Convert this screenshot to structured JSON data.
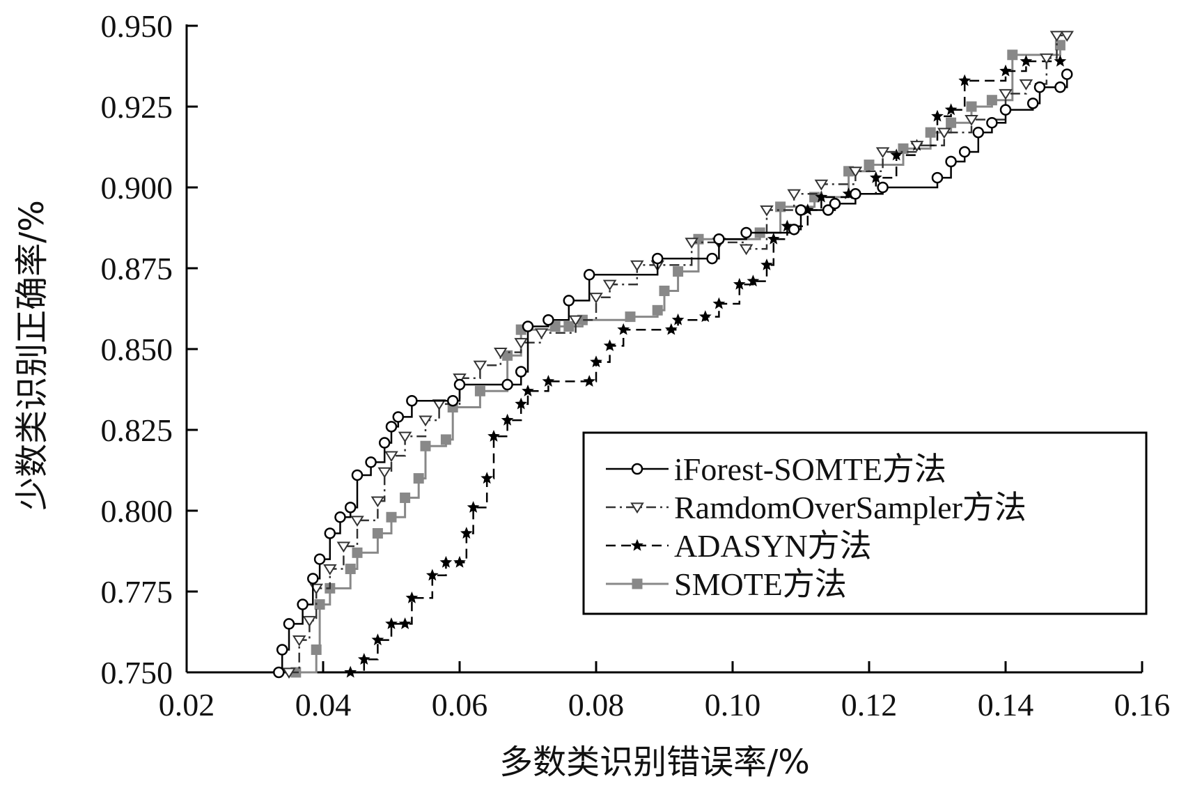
{
  "chart_data": {
    "type": "line",
    "title": "",
    "xlabel": "多数类识别错误率/%",
    "ylabel": "少数类识别正确率/%",
    "xlim": [
      0.02,
      0.16
    ],
    "ylim": [
      0.75,
      0.95
    ],
    "x_ticks": [
      "0.02",
      "0.04",
      "0.06",
      "0.08",
      "0.10",
      "0.12",
      "0.14",
      "0.16"
    ],
    "y_ticks": [
      "0.750",
      "0.775",
      "0.800",
      "0.825",
      "0.850",
      "0.875",
      "0.900",
      "0.925",
      "0.950"
    ],
    "grid": false,
    "legend_position": "right",
    "series": [
      {
        "name": "iForest-SOMTE方法",
        "color": "#000000",
        "line_style": "solid",
        "marker": "circle",
        "points": [
          [
            0.0335,
            0.75
          ],
          [
            0.034,
            0.757
          ],
          [
            0.035,
            0.765
          ],
          [
            0.037,
            0.771
          ],
          [
            0.0385,
            0.779
          ],
          [
            0.0395,
            0.785
          ],
          [
            0.041,
            0.793
          ],
          [
            0.0425,
            0.798
          ],
          [
            0.044,
            0.801
          ],
          [
            0.045,
            0.811
          ],
          [
            0.047,
            0.815
          ],
          [
            0.049,
            0.821
          ],
          [
            0.05,
            0.826
          ],
          [
            0.051,
            0.829
          ],
          [
            0.053,
            0.834
          ],
          [
            0.059,
            0.834
          ],
          [
            0.06,
            0.839
          ],
          [
            0.067,
            0.839
          ],
          [
            0.069,
            0.843
          ],
          [
            0.07,
            0.857
          ],
          [
            0.073,
            0.859
          ],
          [
            0.076,
            0.865
          ],
          [
            0.079,
            0.873
          ],
          [
            0.089,
            0.878
          ],
          [
            0.097,
            0.878
          ],
          [
            0.098,
            0.884
          ],
          [
            0.102,
            0.886
          ],
          [
            0.109,
            0.887
          ],
          [
            0.11,
            0.893
          ],
          [
            0.114,
            0.893
          ],
          [
            0.115,
            0.895
          ],
          [
            0.118,
            0.898
          ],
          [
            0.122,
            0.9
          ],
          [
            0.13,
            0.903
          ],
          [
            0.132,
            0.908
          ],
          [
            0.134,
            0.911
          ],
          [
            0.136,
            0.917
          ],
          [
            0.138,
            0.92
          ],
          [
            0.14,
            0.924
          ],
          [
            0.144,
            0.926
          ],
          [
            0.145,
            0.931
          ],
          [
            0.148,
            0.931
          ],
          [
            0.149,
            0.935
          ]
        ]
      },
      {
        "name": "RamdomOverSampler方法",
        "color": "#333333",
        "line_style": "dash-dot",
        "marker": "triangle-down",
        "points": [
          [
            0.035,
            0.75
          ],
          [
            0.0365,
            0.76
          ],
          [
            0.038,
            0.766
          ],
          [
            0.039,
            0.776
          ],
          [
            0.041,
            0.782
          ],
          [
            0.043,
            0.789
          ],
          [
            0.045,
            0.797
          ],
          [
            0.048,
            0.803
          ],
          [
            0.049,
            0.812
          ],
          [
            0.05,
            0.817
          ],
          [
            0.052,
            0.823
          ],
          [
            0.055,
            0.828
          ],
          [
            0.057,
            0.833
          ],
          [
            0.06,
            0.841
          ],
          [
            0.063,
            0.845
          ],
          [
            0.066,
            0.849
          ],
          [
            0.069,
            0.852
          ],
          [
            0.072,
            0.855
          ],
          [
            0.077,
            0.859
          ],
          [
            0.08,
            0.866
          ],
          [
            0.082,
            0.87
          ],
          [
            0.086,
            0.876
          ],
          [
            0.089,
            0.876
          ],
          [
            0.094,
            0.883
          ],
          [
            0.098,
            0.883
          ],
          [
            0.102,
            0.881
          ],
          [
            0.105,
            0.893
          ],
          [
            0.109,
            0.898
          ],
          [
            0.113,
            0.901
          ],
          [
            0.118,
            0.905
          ],
          [
            0.122,
            0.911
          ],
          [
            0.127,
            0.913
          ],
          [
            0.131,
            0.917
          ],
          [
            0.135,
            0.921
          ],
          [
            0.14,
            0.929
          ],
          [
            0.143,
            0.932
          ],
          [
            0.146,
            0.94
          ],
          [
            0.1475,
            0.947
          ],
          [
            0.149,
            0.947
          ]
        ]
      },
      {
        "name": "ADASYN方法",
        "color": "#000000",
        "line_style": "dashed",
        "marker": "star",
        "points": [
          [
            0.044,
            0.75
          ],
          [
            0.046,
            0.754
          ],
          [
            0.048,
            0.76
          ],
          [
            0.05,
            0.765
          ],
          [
            0.052,
            0.765
          ],
          [
            0.053,
            0.773
          ],
          [
            0.056,
            0.78
          ],
          [
            0.058,
            0.784
          ],
          [
            0.06,
            0.784
          ],
          [
            0.061,
            0.793
          ],
          [
            0.062,
            0.801
          ],
          [
            0.064,
            0.81
          ],
          [
            0.065,
            0.823
          ],
          [
            0.067,
            0.828
          ],
          [
            0.069,
            0.833
          ],
          [
            0.07,
            0.837
          ],
          [
            0.073,
            0.84
          ],
          [
            0.079,
            0.84
          ],
          [
            0.08,
            0.846
          ],
          [
            0.082,
            0.851
          ],
          [
            0.084,
            0.856
          ],
          [
            0.091,
            0.856
          ],
          [
            0.092,
            0.859
          ],
          [
            0.096,
            0.86
          ],
          [
            0.098,
            0.864
          ],
          [
            0.101,
            0.87
          ],
          [
            0.103,
            0.871
          ],
          [
            0.105,
            0.876
          ],
          [
            0.106,
            0.884
          ],
          [
            0.108,
            0.888
          ],
          [
            0.111,
            0.893
          ],
          [
            0.113,
            0.897
          ],
          [
            0.117,
            0.898
          ],
          [
            0.121,
            0.903
          ],
          [
            0.124,
            0.91
          ],
          [
            0.127,
            0.913
          ],
          [
            0.13,
            0.922
          ],
          [
            0.132,
            0.924
          ],
          [
            0.134,
            0.933
          ],
          [
            0.14,
            0.936
          ],
          [
            0.143,
            0.939
          ],
          [
            0.148,
            0.939
          ]
        ]
      },
      {
        "name": "SMOTE方法",
        "color": "#888888",
        "line_style": "solid",
        "marker": "square",
        "points": [
          [
            0.036,
            0.75
          ],
          [
            0.039,
            0.757
          ],
          [
            0.0395,
            0.771
          ],
          [
            0.041,
            0.776
          ],
          [
            0.044,
            0.782
          ],
          [
            0.045,
            0.787
          ],
          [
            0.048,
            0.793
          ],
          [
            0.05,
            0.798
          ],
          [
            0.052,
            0.804
          ],
          [
            0.054,
            0.81
          ],
          [
            0.055,
            0.82
          ],
          [
            0.058,
            0.822
          ],
          [
            0.059,
            0.832
          ],
          [
            0.063,
            0.837
          ],
          [
            0.067,
            0.848
          ],
          [
            0.069,
            0.856
          ],
          [
            0.074,
            0.857
          ],
          [
            0.076,
            0.857
          ],
          [
            0.078,
            0.859
          ],
          [
            0.085,
            0.86
          ],
          [
            0.089,
            0.862
          ],
          [
            0.09,
            0.868
          ],
          [
            0.092,
            0.874
          ],
          [
            0.095,
            0.884
          ],
          [
            0.104,
            0.886
          ],
          [
            0.107,
            0.894
          ],
          [
            0.112,
            0.897
          ],
          [
            0.117,
            0.905
          ],
          [
            0.12,
            0.907
          ],
          [
            0.125,
            0.912
          ],
          [
            0.129,
            0.917
          ],
          [
            0.132,
            0.92
          ],
          [
            0.135,
            0.925
          ],
          [
            0.138,
            0.927
          ],
          [
            0.141,
            0.941
          ],
          [
            0.148,
            0.944
          ]
        ]
      }
    ]
  }
}
